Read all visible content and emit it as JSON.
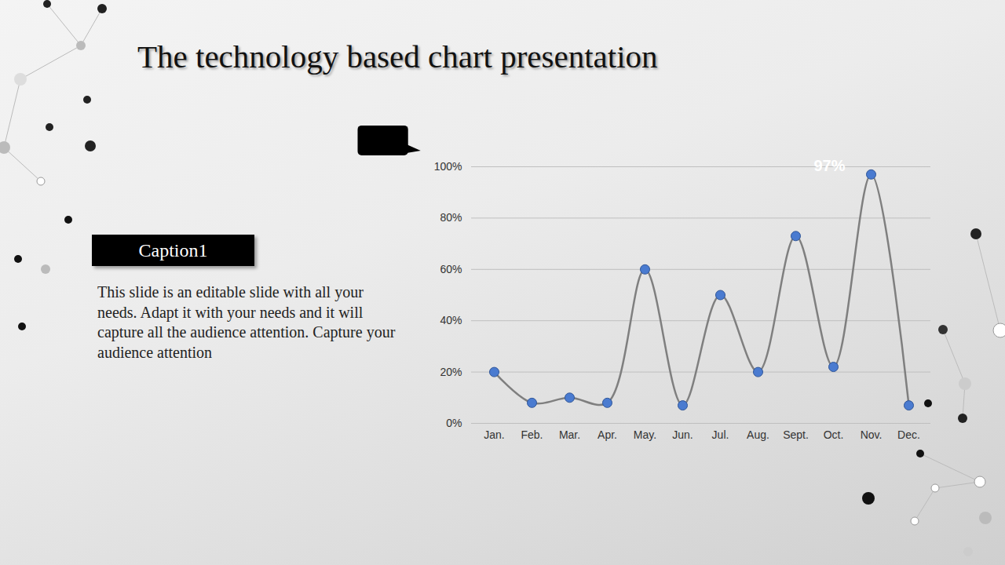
{
  "slide": {
    "title": "The technology based chart presentation",
    "caption": "Caption1",
    "text": "This slide is an editable slide with all your needs. Adapt it with your needs and it will capture all the audience attention. Capture your audience attention"
  },
  "chart_data": {
    "type": "line",
    "categories": [
      "Jan.",
      "Feb.",
      "Mar.",
      "Apr.",
      "May.",
      "Jun.",
      "Jul.",
      "Aug.",
      "Sept.",
      "Oct.",
      "Nov.",
      "Dec."
    ],
    "values": [
      20,
      8,
      10,
      8,
      60,
      7,
      50,
      20,
      73,
      22,
      97,
      7
    ],
    "color": "#7f7f7f",
    "marker": "circle",
    "line_style": "smooth",
    "ylim": [
      0,
      100
    ],
    "yticks": [
      {
        "value": 0,
        "label": "0%"
      },
      {
        "value": 20,
        "label": "20%"
      },
      {
        "value": 40,
        "label": "40%"
      },
      {
        "value": 60,
        "label": "60%"
      },
      {
        "value": 80,
        "label": "80%"
      },
      {
        "value": 100,
        "label": "100%"
      }
    ],
    "grid": true,
    "annotations": [
      {
        "category": "Nov.",
        "text": "97%"
      }
    ]
  }
}
